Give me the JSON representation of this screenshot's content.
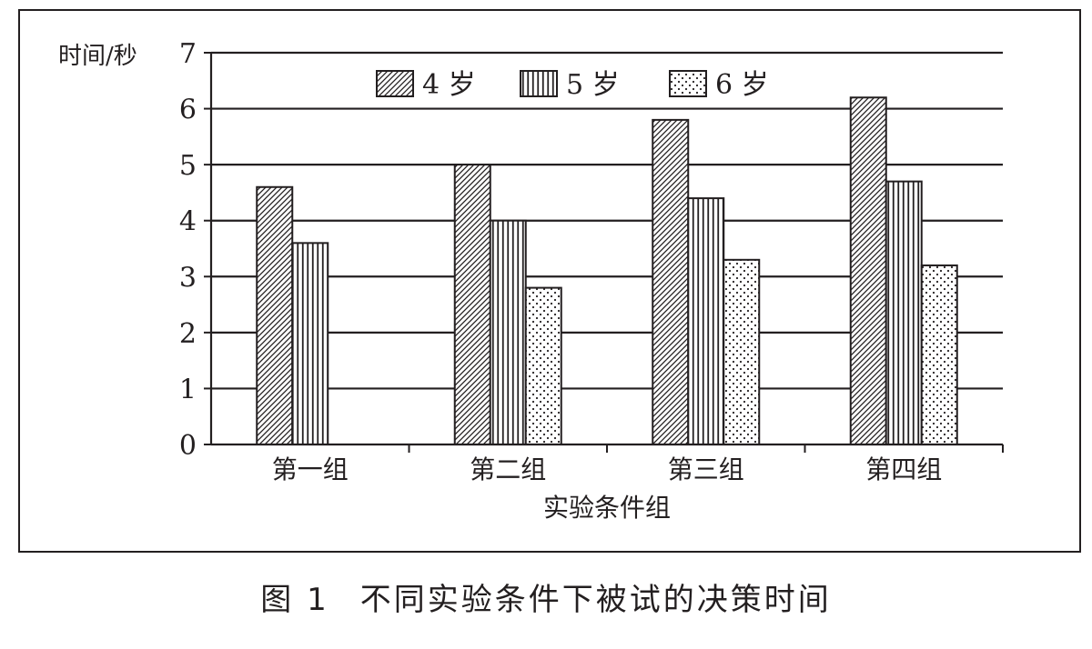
{
  "chart_data": {
    "type": "bar",
    "ylabel": "时间/秒",
    "xlabel": "实验条件组",
    "categories": [
      "第一组",
      "第二组",
      "第三组",
      "第四组"
    ],
    "series": [
      {
        "name": "4 岁",
        "values": [
          4.6,
          5.0,
          5.8,
          6.2
        ],
        "pattern": "diagonal-hatch"
      },
      {
        "name": "5 岁",
        "values": [
          3.6,
          4.0,
          4.4,
          4.7
        ],
        "pattern": "vertical-stripes"
      },
      {
        "name": "6 岁",
        "values": [
          null,
          2.8,
          3.3,
          3.2
        ],
        "pattern": "dots"
      }
    ],
    "ylim": [
      0,
      7
    ],
    "yticks": [
      0,
      1,
      2,
      3,
      4,
      5,
      6,
      7
    ],
    "grid": true,
    "legend": "top-center",
    "colors": {
      "ink": "#231f20",
      "background": "#ffffff"
    }
  },
  "caption": {
    "figure_number": "图 1",
    "title": "不同实验条件下被试的决策时间"
  }
}
